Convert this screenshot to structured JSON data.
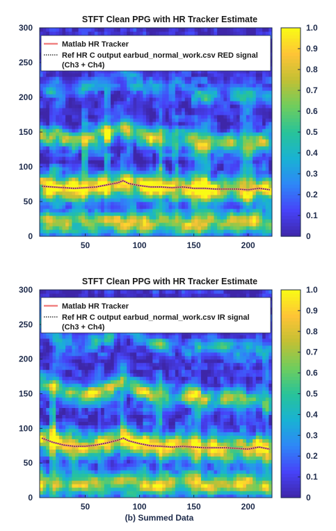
{
  "caption": "(b) Summed Data",
  "colormap": [
    "#3e26a8",
    "#4743f8",
    "#2e87f7",
    "#19b2d3",
    "#28c399",
    "#6fcd5d",
    "#c2c034",
    "#fec436",
    "#f9fb15"
  ],
  "chart_data": [
    {
      "type": "heatmap",
      "title": "STFT Clean PPG with HR Tracker Estimate",
      "xlabel": "",
      "ylabel": "",
      "xlim": [
        8,
        222
      ],
      "ylim": [
        0,
        300
      ],
      "xticks": [
        50,
        100,
        150,
        200
      ],
      "yticks": [
        0,
        50,
        100,
        150,
        200,
        250,
        300
      ],
      "colorbar": {
        "range": [
          0,
          1
        ],
        "ticks": [
          "0",
          "0.1",
          "0.2",
          "0.3",
          "0.4",
          "0.5",
          "0.6",
          "0.7",
          "0.8",
          "0.9",
          "1.0"
        ]
      },
      "legend": {
        "placement": "top-left",
        "entries": [
          {
            "label": "Matlab HR Tracker",
            "color": "#f08080",
            "style": "solid"
          },
          {
            "label": "Ref HR C output earbud_normal_work.csv RED signal",
            "label_cont": "(Ch3 + Ch4)",
            "color": "#333333",
            "style": "dotted"
          }
        ]
      },
      "series": [
        {
          "name": "Matlab HR Tracker",
          "x": [
            10,
            20,
            30,
            40,
            50,
            60,
            70,
            80,
            85,
            90,
            100,
            110,
            120,
            130,
            140,
            150,
            160,
            170,
            180,
            190,
            200,
            210,
            220
          ],
          "y": [
            72,
            71,
            70,
            69,
            70,
            71,
            74,
            77,
            80,
            76,
            73,
            71,
            71,
            70,
            71,
            69,
            69,
            68,
            68,
            68,
            67,
            69,
            67
          ]
        },
        {
          "name": "Ref HR C output earbud_normal_work.csv RED signal (Ch3 + Ch4)",
          "x": [
            10,
            20,
            30,
            40,
            50,
            60,
            70,
            80,
            85,
            90,
            100,
            110,
            120,
            130,
            140,
            150,
            160,
            170,
            180,
            190,
            200,
            210,
            220
          ],
          "y": [
            72,
            71,
            70,
            69,
            70,
            71,
            74,
            77,
            80,
            76,
            73,
            71,
            71,
            70,
            71,
            69,
            69,
            68,
            68,
            68,
            67,
            69,
            67
          ]
        }
      ]
    },
    {
      "type": "heatmap",
      "title": "STFT Clean PPG with HR Tracker Estimate",
      "xlabel": "",
      "ylabel": "",
      "xlim": [
        8,
        222
      ],
      "ylim": [
        0,
        300
      ],
      "xticks": [
        50,
        100,
        150,
        200
      ],
      "yticks": [
        0,
        50,
        100,
        150,
        200,
        250,
        300
      ],
      "colorbar": {
        "range": [
          0,
          1
        ],
        "ticks": [
          "0",
          "0.1",
          "0.2",
          "0.3",
          "0.4",
          "0.5",
          "0.6",
          "0.7",
          "0.8",
          "0.9",
          "1.0"
        ]
      },
      "legend": {
        "placement": "top-left",
        "entries": [
          {
            "label": "Matlab HR Tracker",
            "color": "#f08080",
            "style": "solid"
          },
          {
            "label": "Ref HR C output earbud_normal_work.csv IR signal",
            "label_cont": "(Ch3 + Ch4)",
            "color": "#333333",
            "style": "dotted"
          }
        ]
      },
      "series": [
        {
          "name": "Matlab HR Tracker",
          "x": [
            10,
            20,
            30,
            40,
            50,
            60,
            70,
            80,
            85,
            90,
            100,
            110,
            120,
            130,
            140,
            150,
            160,
            170,
            180,
            190,
            200,
            210,
            220
          ],
          "y": [
            86,
            80,
            76,
            74,
            74,
            76,
            79,
            83,
            86,
            82,
            78,
            75,
            74,
            73,
            74,
            73,
            72,
            72,
            72,
            71,
            70,
            73,
            70
          ]
        },
        {
          "name": "Ref HR C output earbud_normal_work.csv IR signal (Ch3 + Ch4)",
          "x": [
            10,
            20,
            30,
            40,
            50,
            60,
            70,
            80,
            85,
            90,
            100,
            110,
            120,
            130,
            140,
            150,
            160,
            170,
            180,
            190,
            200,
            210,
            220
          ],
          "y": [
            86,
            80,
            76,
            74,
            74,
            76,
            79,
            83,
            86,
            82,
            78,
            75,
            74,
            73,
            74,
            73,
            72,
            72,
            72,
            71,
            70,
            73,
            70
          ]
        }
      ]
    }
  ]
}
